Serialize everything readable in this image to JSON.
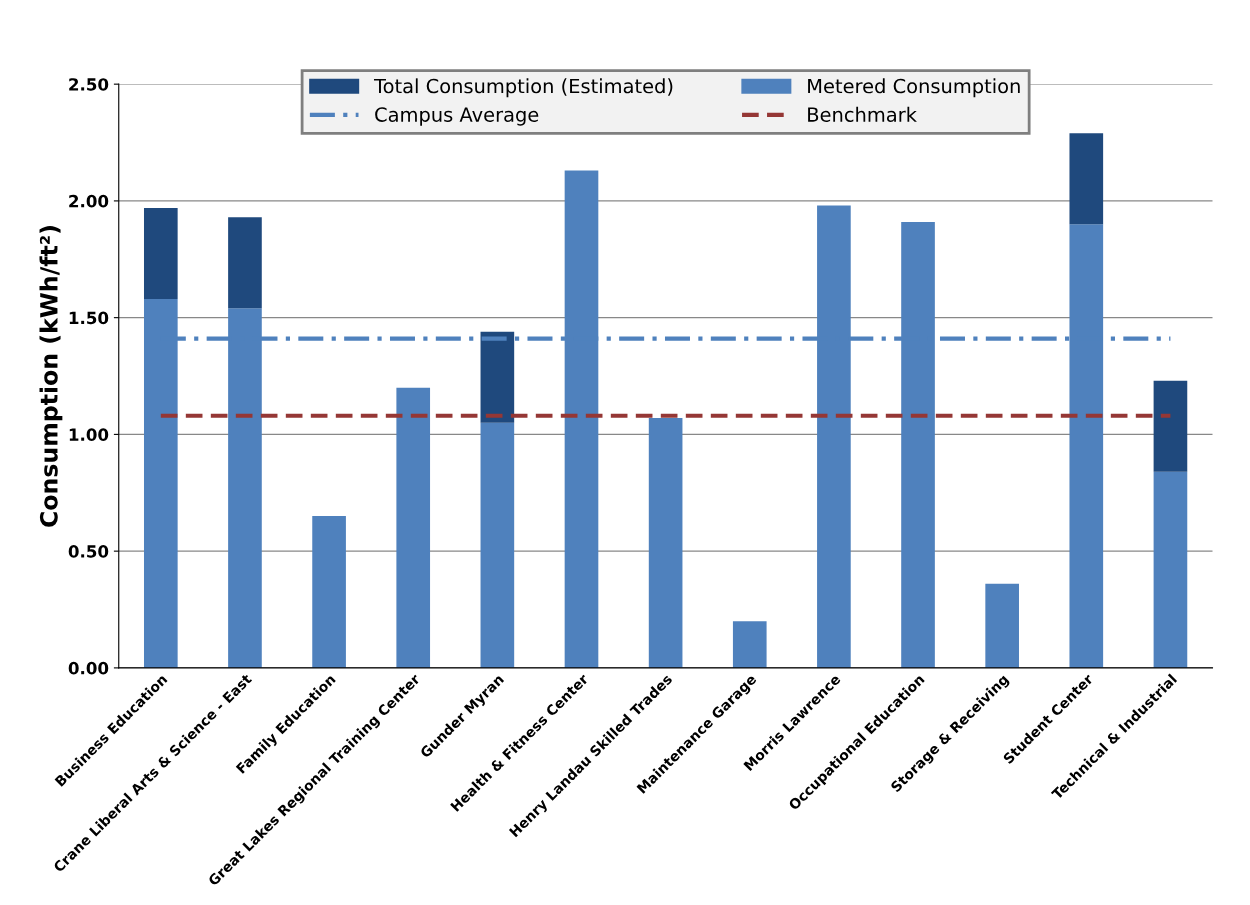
{
  "chart_data": {
    "type": "bar",
    "ylabel": "Consumption (kWh/ft²)",
    "categories": [
      "Business Education",
      "Crane Liberal Arts & Science - East",
      "Family Education",
      "Great Lakes Regional Training Center",
      "Gunder Myran",
      "Health & Fitness Center",
      "Henry Landau Skilled Trades",
      "Maintenance Garage",
      "Morris Lawrence",
      "Occupational Education",
      "Storage & Receiving",
      "Student Center",
      "Technical & Industrial"
    ],
    "stacked": true,
    "series": [
      {
        "name": "Metered Consumption",
        "color": "#4f81bd",
        "values": [
          1.58,
          1.54,
          0.65,
          1.2,
          1.05,
          2.13,
          1.07,
          0.2,
          1.98,
          1.91,
          0.36,
          1.9,
          0.84
        ]
      },
      {
        "name": "Total Consumption (Estimated)",
        "color": "#1f497d",
        "values": [
          0.39,
          0.39,
          null,
          null,
          0.39,
          null,
          null,
          null,
          null,
          null,
          null,
          0.39,
          0.39
        ]
      }
    ],
    "ref_lines": [
      {
        "axis": "y",
        "value": 1.41,
        "label": "Campus Average",
        "color": "#4f81bd",
        "line_style": "dashdot"
      },
      {
        "axis": "y",
        "value": 1.08,
        "label": "Benchmark",
        "color": "#953735",
        "line_style": "dashed"
      }
    ],
    "ylim": [
      0,
      2.5
    ],
    "yticks": [
      {
        "value": 0,
        "label": "0.00"
      },
      {
        "value": 0.5,
        "label": "0.50"
      },
      {
        "value": 1,
        "label": "1.00"
      },
      {
        "value": 1.5,
        "label": "1.50"
      },
      {
        "value": 2,
        "label": "2.00"
      },
      {
        "value": 2.5,
        "label": "2.50"
      }
    ],
    "grid": "y",
    "legend": "top"
  }
}
